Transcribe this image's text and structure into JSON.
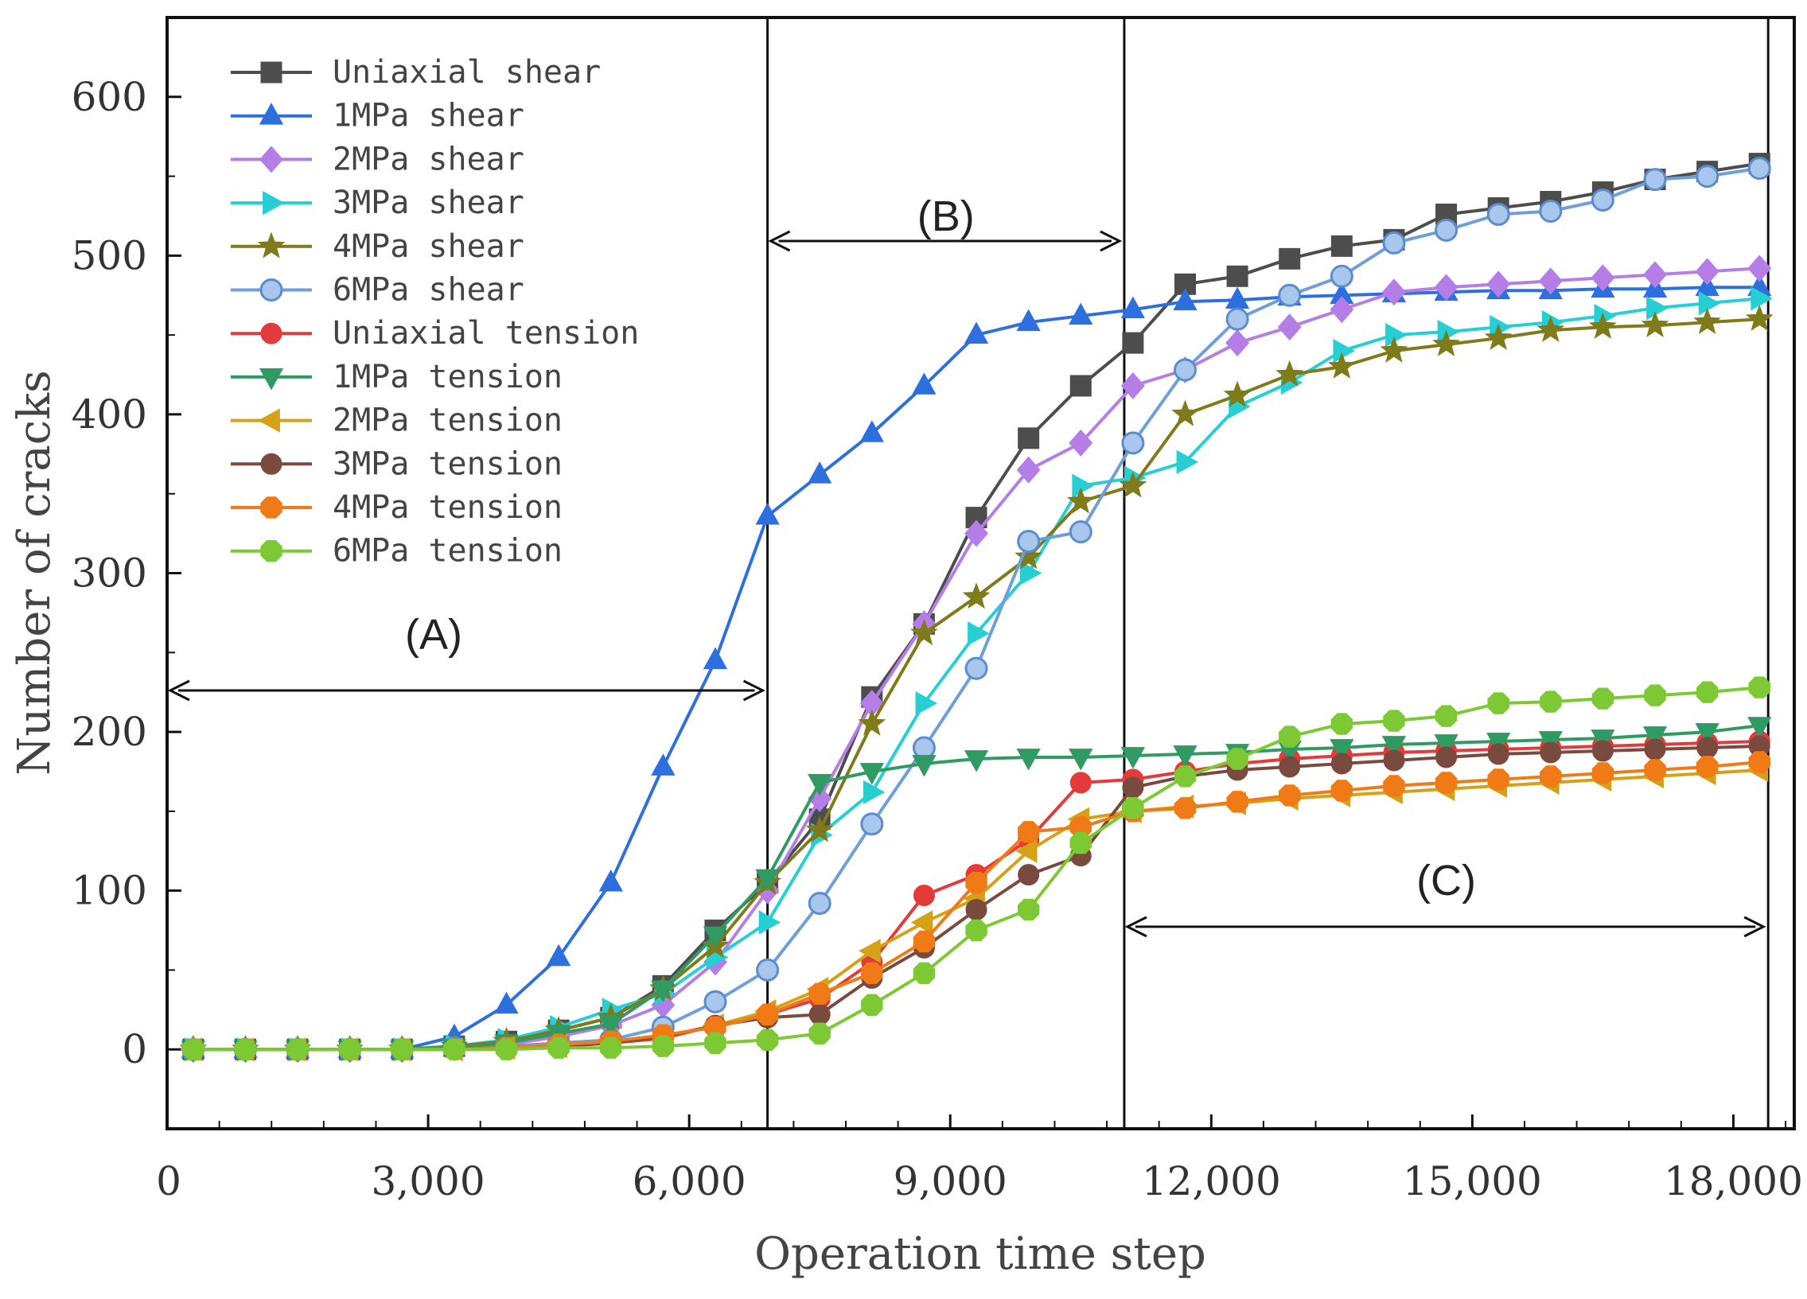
{
  "chart_data": {
    "type": "line",
    "title": "",
    "xlabel": "Operation time step",
    "ylabel": "Number of cracks",
    "xlim": [
      0,
      18700
    ],
    "ylim": [
      -50,
      650
    ],
    "xticks": [
      0,
      3000,
      6000,
      9000,
      12000,
      15000,
      18000
    ],
    "xtick_labels": [
      "0",
      "3,000",
      "6,000",
      "9,000",
      "12,000",
      "15,000",
      "18,000"
    ],
    "yticks": [
      0,
      100,
      200,
      300,
      400,
      500,
      600
    ],
    "ytick_labels": [
      "0",
      "100",
      "200",
      "300",
      "400",
      "500",
      "600"
    ],
    "grid": false,
    "legend_position": "top-left",
    "x": [
      300,
      900,
      1500,
      2100,
      2700,
      3300,
      3900,
      4500,
      5100,
      5700,
      6300,
      6900,
      7500,
      8100,
      8700,
      9300,
      9900,
      10500,
      11100,
      11700,
      12300,
      12900,
      13500,
      14100,
      14700,
      15300,
      15900,
      16500,
      17100,
      17700,
      18300
    ],
    "series": [
      {
        "name": "Uniaxial shear",
        "color": "#4d4d4d",
        "marker": "square",
        "values": [
          0,
          0,
          0,
          0,
          0,
          2,
          5,
          12,
          20,
          40,
          75,
          105,
          145,
          222,
          268,
          335,
          385,
          418,
          445,
          482,
          487,
          498,
          506,
          510,
          526,
          530,
          534,
          540,
          548,
          553,
          558
        ]
      },
      {
        "name": "1MPa shear",
        "color": "#2e6fe0",
        "marker": "triangle-up",
        "values": [
          0,
          0,
          0,
          0,
          0,
          8,
          28,
          58,
          105,
          178,
          245,
          336,
          362,
          388,
          418,
          450,
          458,
          462,
          466,
          471,
          472,
          474,
          475,
          476,
          477,
          478,
          478,
          479,
          479,
          480,
          480
        ]
      },
      {
        "name": "2MPa shear",
        "color": "#b57ee6",
        "marker": "diamond",
        "values": [
          0,
          0,
          0,
          0,
          0,
          1,
          3,
          8,
          15,
          28,
          55,
          100,
          158,
          218,
          268,
          325,
          365,
          382,
          418,
          428,
          445,
          455,
          466,
          477,
          480,
          482,
          484,
          486,
          488,
          490,
          492
        ]
      },
      {
        "name": "3MPa shear",
        "color": "#25cfd3",
        "marker": "triangle-right",
        "values": [
          0,
          0,
          0,
          0,
          0,
          2,
          6,
          14,
          25,
          35,
          58,
          80,
          135,
          162,
          218,
          262,
          300,
          355,
          360,
          370,
          405,
          420,
          440,
          450,
          452,
          455,
          458,
          462,
          467,
          470,
          473
        ]
      },
      {
        "name": "4MPa shear",
        "color": "#7f7a1a",
        "marker": "star",
        "values": [
          0,
          0,
          0,
          0,
          0,
          2,
          5,
          12,
          20,
          38,
          65,
          105,
          138,
          205,
          262,
          285,
          310,
          345,
          355,
          400,
          412,
          425,
          430,
          440,
          444,
          448,
          453,
          455,
          456,
          458,
          460
        ]
      },
      {
        "name": "6MPa shear",
        "color": "#6f9fd8",
        "marker": "circle",
        "values": [
          0,
          0,
          0,
          0,
          0,
          1,
          2,
          4,
          6,
          14,
          30,
          50,
          92,
          142,
          190,
          240,
          320,
          326,
          382,
          428,
          460,
          475,
          487,
          508,
          516,
          526,
          528,
          535,
          548,
          550,
          555
        ]
      },
      {
        "name": "Uniaxial tension",
        "color": "#e53a3a",
        "marker": "circle",
        "values": [
          0,
          0,
          0,
          0,
          0,
          0,
          1,
          2,
          4,
          7,
          15,
          22,
          32,
          55,
          97,
          110,
          132,
          168,
          170,
          175,
          180,
          183,
          185,
          187,
          188,
          189,
          190,
          191,
          192,
          193,
          194
        ]
      },
      {
        "name": "1MPa tension",
        "color": "#2f9a62",
        "marker": "triangle-down",
        "values": [
          0,
          0,
          0,
          0,
          0,
          1,
          4,
          10,
          16,
          38,
          72,
          108,
          168,
          175,
          180,
          183,
          184,
          184,
          185,
          186,
          187,
          189,
          190,
          192,
          193,
          194,
          195,
          196,
          198,
          200,
          204
        ]
      },
      {
        "name": "2MPa tension",
        "color": "#d6a017",
        "marker": "triangle-left",
        "values": [
          0,
          0,
          0,
          0,
          0,
          0,
          1,
          2,
          4,
          8,
          15,
          24,
          38,
          62,
          80,
          95,
          125,
          145,
          150,
          153,
          155,
          158,
          160,
          162,
          164,
          166,
          168,
          170,
          172,
          174,
          176
        ]
      },
      {
        "name": "3MPa tension",
        "color": "#7a4a3e",
        "marker": "circle",
        "values": [
          0,
          0,
          0,
          0,
          0,
          0,
          1,
          2,
          4,
          8,
          15,
          20,
          22,
          45,
          64,
          88,
          110,
          122,
          165,
          172,
          176,
          178,
          180,
          182,
          184,
          186,
          187,
          188,
          189,
          190,
          191
        ]
      },
      {
        "name": "4MPa tension",
        "color": "#f07a16",
        "marker": "octagon",
        "values": [
          0,
          0,
          0,
          0,
          0,
          0,
          1,
          3,
          5,
          9,
          14,
          22,
          35,
          48,
          68,
          105,
          137,
          140,
          150,
          152,
          156,
          160,
          163,
          166,
          168,
          170,
          172,
          174,
          176,
          178,
          181
        ]
      },
      {
        "name": "6MPa tension",
        "color": "#7cc934",
        "marker": "octagon",
        "values": [
          0,
          0,
          0,
          0,
          0,
          0,
          0,
          1,
          1,
          2,
          4,
          6,
          10,
          28,
          48,
          75,
          88,
          130,
          152,
          172,
          183,
          197,
          205,
          207,
          210,
          218,
          219,
          221,
          223,
          225,
          228
        ]
      }
    ],
    "regions": [
      {
        "label": "(A)",
        "x_start": 0,
        "x_end": 6900
      },
      {
        "label": "(B)",
        "x_start": 6900,
        "x_end": 11000
      },
      {
        "label": "(C)",
        "x_start": 11000,
        "x_end": 18400
      }
    ]
  }
}
